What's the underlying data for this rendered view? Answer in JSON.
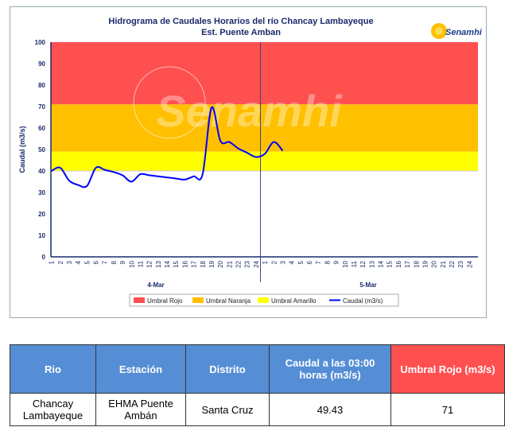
{
  "chart_data": {
    "type": "line",
    "title": "Hidrograma de Caudales Horarios del río Chancay Lambayeque",
    "subtitle": "Est. Puente Amban",
    "ylabel": "Caudal  (m3/s)",
    "ylim": [
      0,
      100
    ],
    "yticks": [
      0,
      10,
      20,
      30,
      40,
      50,
      60,
      70,
      80,
      90,
      100
    ],
    "days": [
      "4-Mar",
      "5-Mar"
    ],
    "hour_ticks": [
      "1",
      "2",
      "3",
      "4",
      "5",
      "6",
      "7",
      "8",
      "9",
      "10",
      "11",
      "12",
      "13",
      "14",
      "15",
      "16",
      "17",
      "18",
      "19",
      "20",
      "21",
      "22",
      "23",
      "24"
    ],
    "thresholds": {
      "amarillo": [
        40,
        49
      ],
      "naranja": [
        49,
        71
      ],
      "rojo": [
        71,
        100
      ]
    },
    "series": [
      {
        "name": "Caudal (m3/s)",
        "color": "#0000ff",
        "values": [
          40,
          41.5,
          35.5,
          33.5,
          33,
          41.5,
          40.5,
          39.5,
          38,
          35,
          38.5,
          38,
          37.5,
          37,
          36.5,
          36,
          37.5,
          38.5,
          69.5,
          54,
          53.5,
          50.5,
          48.5,
          46.5,
          48,
          53.5,
          49.43
        ]
      }
    ],
    "legend": [
      {
        "name": "Umbral Rojo",
        "color": "#ff5050"
      },
      {
        "name": "Umbral Naranja",
        "color": "#ffc000"
      },
      {
        "name": "Umbral Amarillo",
        "color": "#ffff00"
      },
      {
        "name": "Caudal (m3/s)",
        "color": "#0000ff"
      }
    ],
    "legend_position": "bottom",
    "watermark": "Senamhi"
  },
  "logo": "Senamhi",
  "table": {
    "headers": [
      "Rio",
      "Estación",
      "Distrito",
      "Caudal a las 03:00 horas (m3/s)",
      "Umbral Rojo (m3/s)"
    ],
    "row": [
      "Chancay Lambayeque",
      "EHMA Puente Ambán",
      "Santa Cruz",
      "49.43",
      "71"
    ]
  }
}
